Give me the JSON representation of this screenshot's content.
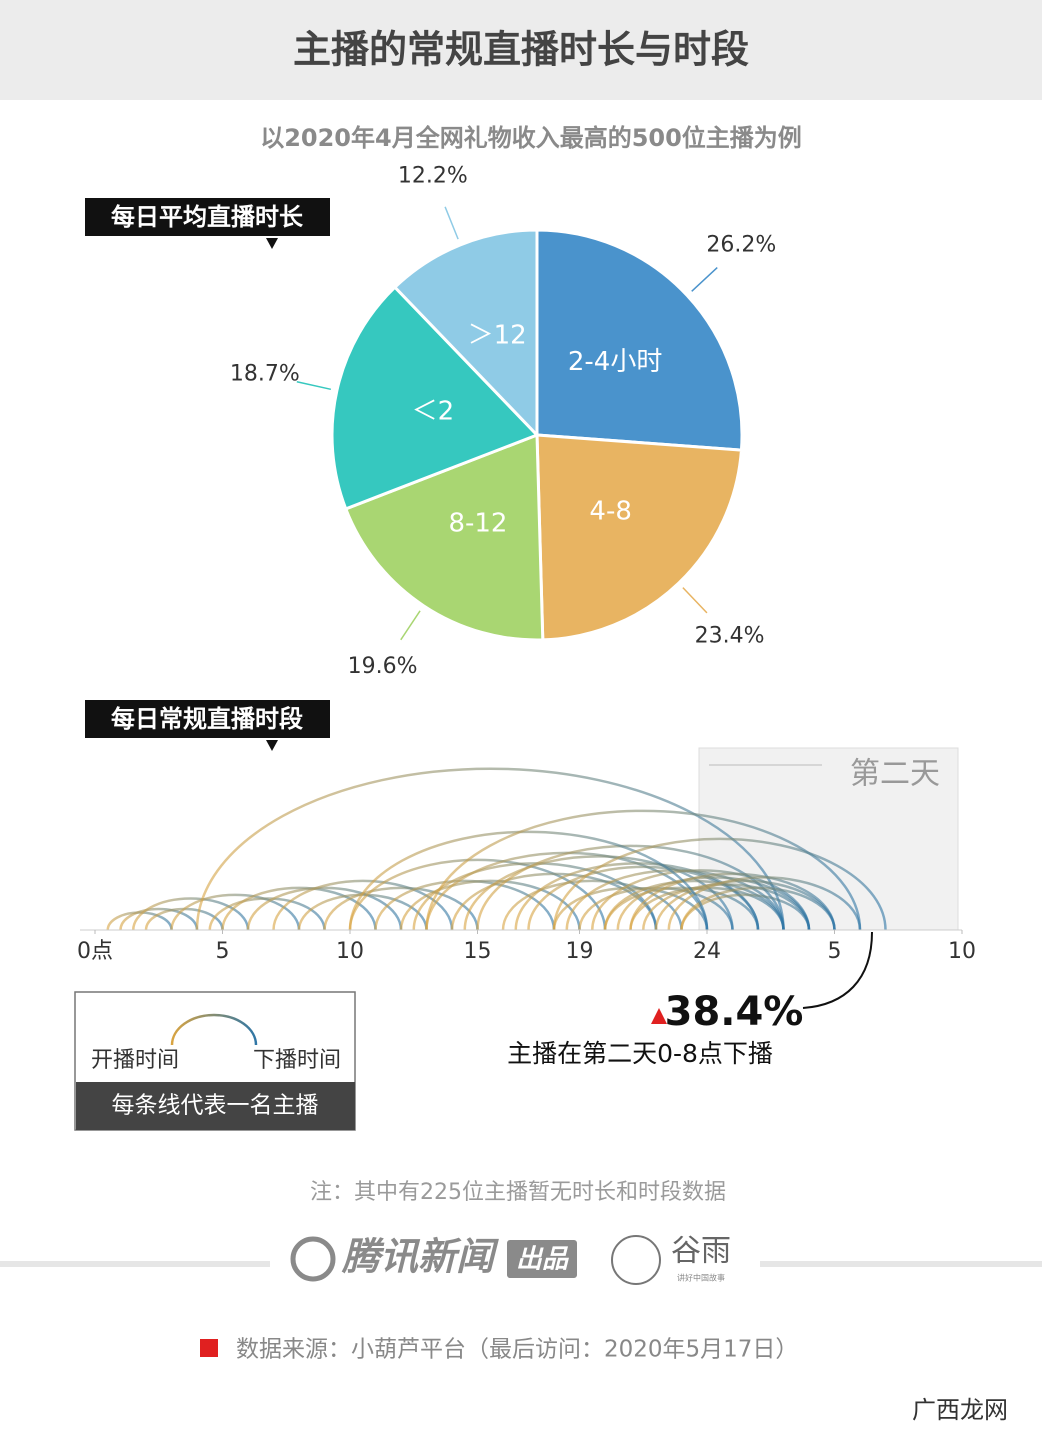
{
  "title": "主播的常规直播时长与时段",
  "subtitle": "以2020年4月全网礼物收入最高的500位主播为例",
  "chart_data": [
    {
      "type": "pie",
      "title": "每日平均直播时长",
      "categories": [
        "2-4小时",
        "4-8",
        "8-12",
        "＜2",
        "＞12"
      ],
      "values": [
        26.2,
        23.4,
        19.6,
        18.7,
        12.2
      ],
      "value_labels": [
        "26.2%",
        "23.4%",
        "19.6%",
        "18.7%",
        "12.2%"
      ],
      "colors": [
        "#4a93cc",
        "#e8b462",
        "#a9d672",
        "#36c8bf",
        "#8fcbe6"
      ]
    },
    {
      "type": "arc",
      "title": "每日常规直播时段",
      "xlim": [
        0,
        34
      ],
      "xticks": [
        {
          "value": 0,
          "label": "0点"
        },
        5,
        10,
        15,
        19,
        24,
        {
          "value": 29,
          "label": "5"
        },
        {
          "value": 34,
          "label": "10"
        }
      ],
      "arcs": {
        "start": [
          0.5,
          1,
          1.5,
          2,
          3,
          4,
          4.5,
          5,
          6,
          7,
          8,
          9,
          10,
          11,
          12,
          12.5,
          13,
          14,
          14.5,
          15,
          16,
          16.5,
          17,
          18,
          18.5,
          19,
          19.5,
          20,
          20,
          20.5,
          21,
          21,
          21.5,
          22,
          22.5,
          23,
          23,
          10,
          13,
          18
        ],
        "end": [
          3,
          4,
          6,
          5,
          8,
          27,
          9,
          11,
          12,
          14,
          13,
          15,
          20,
          18,
          19,
          22,
          24,
          22,
          25,
          27,
          23,
          26,
          26,
          24,
          27,
          25,
          28,
          26,
          27,
          28,
          27,
          29,
          28,
          29,
          30,
          28,
          29,
          24,
          30,
          31
        ]
      },
      "start_color": "#d9a441",
      "end_color": "#2f76a6",
      "region_label": "第二天",
      "legend": {
        "start": "开播时间",
        "end": "下播时间",
        "caption": "每条线代表一名主播"
      },
      "annotation": {
        "label": "38.4%",
        "text": "主播在第二天0-8点下播"
      }
    }
  ],
  "note": "注：其中有225位主播暂无时长和时段数据",
  "footer": {
    "brand": "腾讯新闻",
    "brand_tag": "出品",
    "partner": "谷雨",
    "partner_tag": "讲好中国故事"
  },
  "source": "数据来源：小葫芦平台（最后访问：2020年5月17日）",
  "watermark": "广西龙网"
}
